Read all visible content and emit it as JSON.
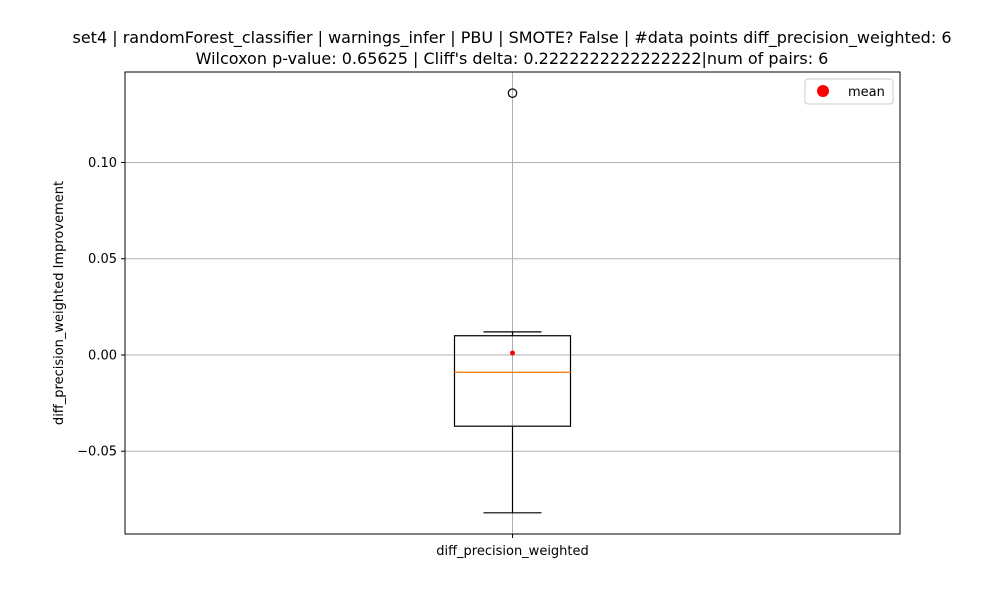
{
  "chart_data": {
    "type": "box",
    "title_line1": "set4 | randomForest_classifier | warnings_infer | PBU | SMOTE? False | #data points diff_precision_weighted: 6",
    "title_line2": "Wilcoxon p-value: 0.65625 | Cliff's delta: 0.2222222222222222|num of pairs: 6",
    "xlabel": "",
    "ylabel": "diff_precision_weighted Improvement",
    "ylim": [
      -0.093,
      0.147
    ],
    "yticks": [
      -0.05,
      0.0,
      0.05,
      0.1
    ],
    "ytick_labels": [
      "−0.05",
      "0.00",
      "0.05",
      "0.10"
    ],
    "categories": [
      "diff_precision_weighted"
    ],
    "grid": true,
    "legend": {
      "position": "top-right",
      "entries": [
        {
          "label": "mean",
          "color": "#ff0000"
        }
      ]
    },
    "boxes": [
      {
        "category": "diff_precision_weighted",
        "whisker_low": -0.082,
        "q1": -0.037,
        "median": -0.009,
        "q3": 0.01,
        "whisker_high": 0.012,
        "mean": 0.001,
        "outliers": [
          0.136
        ]
      }
    ],
    "colors": {
      "median": "#ff7f0e",
      "mean": "#ff0000",
      "box": "#000000",
      "grid": "#b0b0b0"
    }
  }
}
